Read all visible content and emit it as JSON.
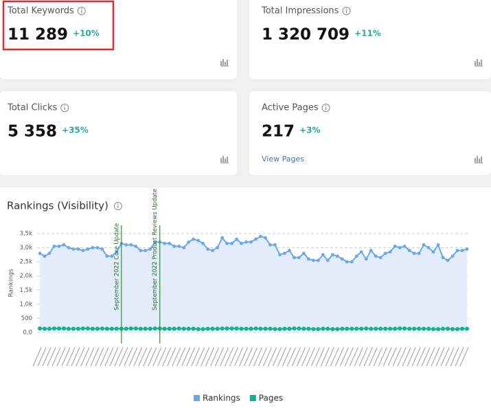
{
  "cards": [
    {
      "title": "Total Keywords",
      "value": "11 289",
      "change": "+10%"
    },
    {
      "title": "Total Impressions",
      "value": "1 320 709",
      "change": "+11%"
    },
    {
      "title": "Total Clicks",
      "value": "5 358",
      "change": "+35%"
    },
    {
      "title": "Active Pages",
      "value": "217",
      "change": "+3%",
      "link": "View Pages"
    }
  ],
  "chart_data": {
    "type": "line",
    "title": "Rankings (Visibility)",
    "y_label": "Rankings",
    "categories": [
      null,
      null,
      null,
      null,
      null,
      null,
      null,
      null,
      null,
      null,
      null,
      null,
      null,
      null,
      null,
      null,
      null,
      null,
      null,
      null,
      null,
      null,
      null,
      null,
      null,
      null,
      null,
      null,
      null,
      null,
      null,
      null,
      null,
      null,
      null,
      null,
      null,
      null,
      null,
      null,
      null,
      null,
      null,
      null,
      null,
      null,
      null,
      null,
      null,
      null,
      null,
      null,
      null,
      null,
      null,
      null,
      null,
      null,
      null,
      null,
      null,
      null,
      null,
      null,
      null,
      null,
      null,
      null,
      null,
      null,
      null,
      null,
      null,
      null,
      null,
      null,
      null,
      null,
      null,
      null,
      null,
      null,
      null,
      null,
      null,
      null,
      null,
      null,
      null,
      null
    ],
    "series": [
      {
        "name": "Rankings",
        "color": "#6ea6e8",
        "area": true,
        "values": [
          2800,
          2700,
          2800,
          3050,
          3050,
          3100,
          3000,
          2950,
          2950,
          2900,
          2950,
          3000,
          3000,
          2950,
          2700,
          2700,
          2850,
          3150,
          3100,
          3100,
          3050,
          2900,
          2900,
          2950,
          3200,
          3200,
          3150,
          3150,
          3050,
          3050,
          3000,
          3200,
          3300,
          3250,
          3150,
          2950,
          2900,
          3000,
          3350,
          3150,
          3150,
          3300,
          3150,
          3200,
          3200,
          3300,
          3400,
          3350,
          3100,
          3100,
          2750,
          2800,
          2900,
          2650,
          2650,
          2800,
          2600,
          2550,
          2550,
          2750,
          2550,
          2750,
          2700,
          2600,
          2500,
          2500,
          2700,
          2850,
          2600,
          2900,
          2700,
          2650,
          2800,
          2850,
          3050,
          3000,
          3050,
          2900,
          2800,
          2800,
          3100,
          3000,
          2850,
          3100,
          2650,
          2550,
          2700,
          2900,
          2900,
          2950
        ]
      },
      {
        "name": "Pages",
        "color": "#17b08c",
        "area": false,
        "values": [
          140,
          130,
          130,
          140,
          140,
          140,
          130,
          130,
          130,
          140,
          140,
          130,
          130,
          140,
          130,
          130,
          130,
          130,
          130,
          140,
          140,
          130,
          130,
          130,
          140,
          140,
          130,
          130,
          130,
          140,
          130,
          130,
          130,
          120,
          120,
          130,
          130,
          130,
          140,
          140,
          140,
          140,
          130,
          130,
          130,
          140,
          130,
          130,
          130,
          120,
          120,
          130,
          130,
          140,
          140,
          130,
          130,
          120,
          120,
          130,
          130,
          120,
          120,
          130,
          130,
          130,
          130,
          130,
          140,
          130,
          130,
          130,
          130,
          130,
          130,
          140,
          140,
          130,
          130,
          130,
          130,
          130,
          120,
          120,
          130,
          130,
          120,
          120,
          130,
          130
        ]
      }
    ],
    "ylim": [
      0,
      3500
    ],
    "yticks": [
      {
        "value": 0,
        "label": "0,0"
      },
      500,
      {
        "value": 1000,
        "label": "1,0k"
      },
      {
        "value": 1500,
        "label": "1,5k"
      },
      {
        "value": 2000,
        "label": "2,0k"
      },
      {
        "value": 2500,
        "label": "2,5k"
      },
      {
        "value": 3000,
        "label": "3,0k"
      },
      {
        "value": 3500,
        "label": "3,5k"
      }
    ],
    "grid": true,
    "legend": "bottom",
    "annotations": [
      {
        "text": "September 2022 Core Update",
        "index": 17
      },
      {
        "text": "September 2022 Product Reviews Update",
        "index": 25
      }
    ]
  }
}
